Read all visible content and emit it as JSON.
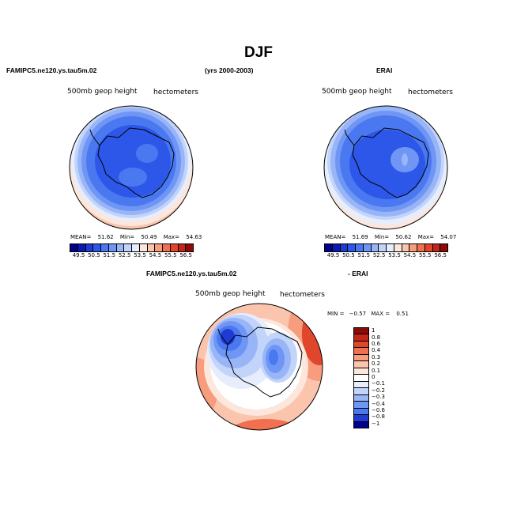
{
  "title": "DJF",
  "panels": {
    "model": {
      "header": "FAMIPC5.ne120.ys.tau5m.02",
      "field": "500mb  geop  height",
      "units": "hectometers",
      "stats": {
        "mean_label": "MEAN=",
        "mean": "51.62",
        "min_label": "Min=",
        "min": "50.49",
        "max_label": "Max=",
        "max": "54.63"
      }
    },
    "obs": {
      "header": "ERAI",
      "field": "500mb  geop  height",
      "units": "hectometers",
      "stats": {
        "mean_label": "MEAN=",
        "mean": "51.69",
        "min_label": "Min=",
        "min": "50.62",
        "max_label": "Max=",
        "max": "54.07"
      }
    },
    "diff": {
      "header_left": "FAMIPC5.ne120.ys.tau5m.02",
      "header_right": "- ERAI",
      "field": "500mb  geop  height",
      "units": "hectometers",
      "min_label": "MIN =",
      "min": "−0.57",
      "max_label": "MAX =",
      "max": "0.51"
    }
  },
  "years": "(yrs 2000-2003)",
  "colorbar_top": {
    "ticks": [
      "49.5",
      "50.5",
      "51.5",
      "52.5",
      "53.5",
      "54.5",
      "55.5",
      "56.5"
    ],
    "colors": [
      "#00008b",
      "#0a1ab0",
      "#1e3cd2",
      "#2d57e8",
      "#4a78f0",
      "#6f96f5",
      "#98b5f8",
      "#c3d4fb",
      "#e6eefd",
      "#fde6dc",
      "#fbc4ad",
      "#f79c7d",
      "#f0704f",
      "#e0462b",
      "#c4261a",
      "#8c0a08"
    ]
  },
  "colorbar_diff": {
    "ticks": [
      "1",
      "0.8",
      "0.6",
      "0.4",
      "0.3",
      "0.2",
      "0.1",
      "0",
      "−0.1",
      "−0.2",
      "−0.3",
      "−0.4",
      "−0.6",
      "−0.8",
      "−1"
    ],
    "colors": [
      "#8c0a08",
      "#c4261a",
      "#e0462b",
      "#f0704f",
      "#f79c7d",
      "#fbc4ad",
      "#fde6dc",
      "#ffffff",
      "#e6eefd",
      "#c3d4fb",
      "#98b5f8",
      "#6f96f5",
      "#4a78f0",
      "#1e3cd2",
      "#00008b"
    ]
  }
}
